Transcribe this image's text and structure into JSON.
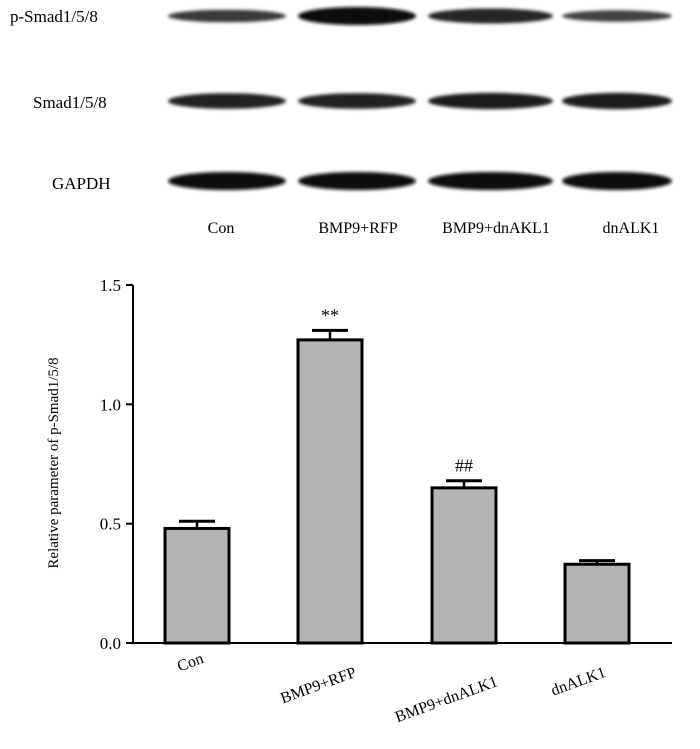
{
  "blot": {
    "rows": [
      {
        "label": "p-Smad1/5/8",
        "intensity": [
          0.55,
          1.0,
          0.75,
          0.45
        ]
      },
      {
        "label": "Smad1/5/8",
        "intensity": [
          0.8,
          0.8,
          0.85,
          0.85
        ]
      },
      {
        "label": "GAPDH",
        "intensity": [
          1.0,
          1.0,
          1.0,
          1.0
        ]
      }
    ],
    "lanes": [
      "Con",
      "BMP9+RFP",
      "BMP9+dnAKL1",
      "dnALK1"
    ]
  },
  "chart_data": {
    "type": "bar",
    "categories": [
      "Con",
      "BMP9+RFP",
      "BMP9+dnALK1",
      "dnALK1"
    ],
    "values": [
      0.48,
      1.27,
      0.65,
      0.33
    ],
    "errors": [
      0.03,
      0.04,
      0.03,
      0.015
    ],
    "annotations": [
      "",
      "**",
      "##",
      ""
    ],
    "ylabel": "Relative parameter of p-Smad1/5/8",
    "xlabel": "",
    "ylim": [
      0.0,
      1.5
    ],
    "yticks": [
      "0.0",
      "0.5",
      "1.0",
      "1.5"
    ],
    "bar_color": "#b3b3b3",
    "grid": false
  }
}
